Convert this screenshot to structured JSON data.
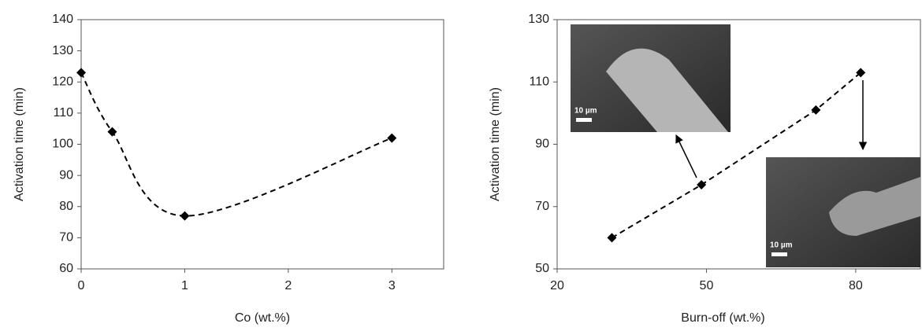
{
  "chart_data": [
    {
      "type": "scatter",
      "x_label": "Co (wt.%)",
      "y_label": "Activation time (min)",
      "x": [
        0,
        0.3,
        1,
        3
      ],
      "values": [
        123,
        104,
        77,
        102
      ],
      "color": "#000000",
      "line": "smooth",
      "xlim": [
        0,
        3.5
      ],
      "xticks": [
        0,
        1,
        2,
        3
      ],
      "ylim": [
        60,
        140
      ],
      "yticks": [
        60,
        70,
        80,
        90,
        100,
        110,
        120,
        130,
        140
      ]
    },
    {
      "type": "scatter",
      "x_label": "Burn-off (wt.%)",
      "y_label": "Activation time (min)",
      "x": [
        31,
        49,
        72,
        81
      ],
      "values": [
        60,
        77,
        101,
        113
      ],
      "color": "#000000",
      "line": "straight",
      "xlim": [
        20,
        93
      ],
      "xticks": [
        20,
        50,
        80
      ],
      "ylim": [
        50,
        130
      ],
      "yticks": [
        50,
        70,
        90,
        110,
        130
      ],
      "annotations": [
        "10 µm",
        "10 µm"
      ]
    }
  ]
}
